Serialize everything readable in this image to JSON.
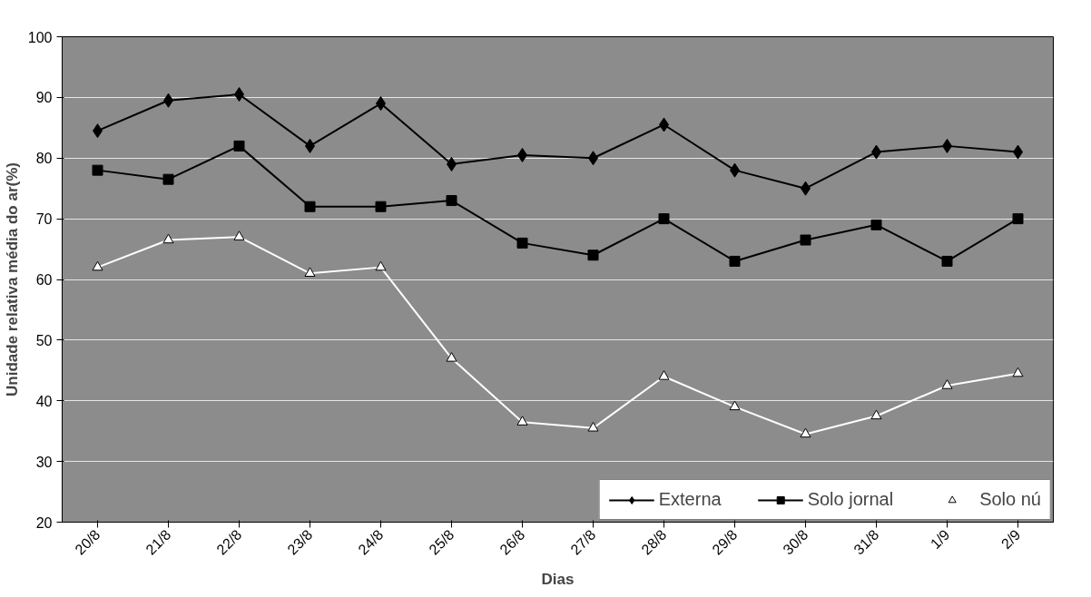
{
  "chart_data": {
    "type": "line",
    "xlabel": "Dias",
    "ylabel": "Unidade relativa média do ar(%)",
    "categories": [
      "20/8",
      "21/8",
      "22/8",
      "23/8",
      "24/8",
      "25/8",
      "26/8",
      "27/8",
      "28/8",
      "29/8",
      "30/8",
      "31/8",
      "1/9",
      "2/9"
    ],
    "series": [
      {
        "name": "Externa",
        "color": "#000000",
        "marker": "diamond",
        "values": [
          84.5,
          89.5,
          90.5,
          82,
          89,
          79,
          80.5,
          80,
          85.5,
          78,
          75,
          81,
          82,
          81
        ]
      },
      {
        "name": "Solo jornal",
        "color": "#000000",
        "marker": "square",
        "values": [
          78,
          76.5,
          82,
          72,
          72,
          73,
          66,
          64,
          70,
          63,
          66.5,
          69,
          63,
          70
        ]
      },
      {
        "name": "Solo nú",
        "color": "#ffffff",
        "marker": "triangle",
        "values": [
          62,
          66.5,
          67,
          61,
          62,
          47,
          36.5,
          35.5,
          44,
          39,
          34.5,
          37.5,
          42.5,
          44.5
        ]
      }
    ],
    "ylim": [
      20,
      100
    ],
    "yticks": [
      20,
      30,
      40,
      50,
      60,
      70,
      80,
      90,
      100
    ],
    "grid": "y",
    "legend": "bottom right",
    "line_style": "solid"
  }
}
